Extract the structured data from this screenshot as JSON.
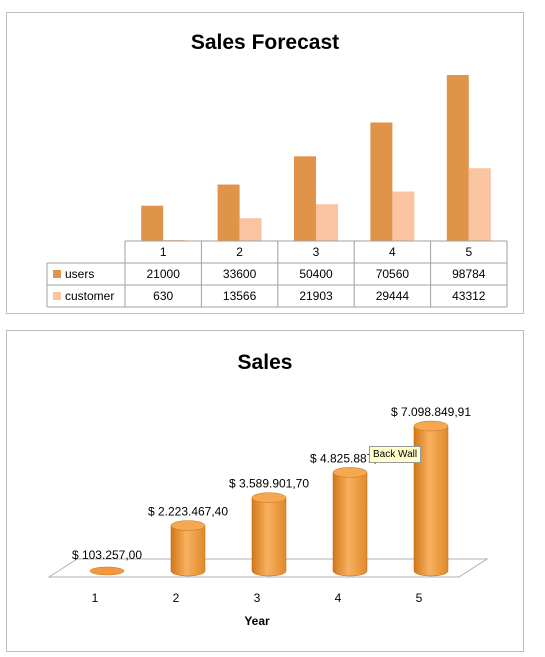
{
  "chart_data": [
    {
      "type": "bar",
      "title": "Sales Forecast",
      "categories": [
        "1",
        "2",
        "3",
        "4",
        "5"
      ],
      "series": [
        {
          "name": "users",
          "color": "#e0944a",
          "values": [
            21000,
            33600,
            50400,
            70560,
            98784
          ]
        },
        {
          "name": "customer",
          "color": "#fbc4a0",
          "values": [
            630,
            13566,
            21903,
            29444,
            43312
          ]
        }
      ],
      "ylim": [
        0,
        100000
      ],
      "grid": false,
      "legend": "data-table"
    },
    {
      "type": "bar",
      "title": "Sales",
      "xlabel": "Year",
      "categories": [
        "1",
        "2",
        "3",
        "4",
        "5"
      ],
      "values": [
        103257.0,
        2223467.4,
        3589901.7,
        4825887.99,
        7098849.91
      ],
      "data_labels": [
        "$ 103.257,00",
        "$ 2.223.467,40",
        "$ 3.589.901,70",
        "$ 4.825.887,99",
        "$ 7.098.849,91"
      ],
      "color": "#f0a040",
      "ylim": [
        0,
        7098849.91
      ],
      "grid": false,
      "legend": "none"
    }
  ],
  "tooltip": {
    "text": "Back Wall"
  }
}
